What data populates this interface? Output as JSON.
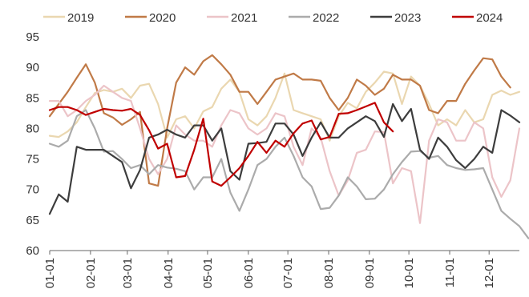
{
  "chart_data": {
    "type": "line",
    "title": "",
    "xlabel": "",
    "ylabel": "",
    "ylim": [
      60,
      95
    ],
    "yticks": [
      60,
      65,
      70,
      75,
      80,
      85,
      90,
      95
    ],
    "xlim_week": [
      1,
      52
    ],
    "x_ticks": [
      {
        "label": "01-01",
        "week": 1
      },
      {
        "label": "02-01",
        "week": 5.43
      },
      {
        "label": "03-01",
        "week": 9.43
      },
      {
        "label": "04-01",
        "week": 13.86
      },
      {
        "label": "05-01",
        "week": 18.14
      },
      {
        "label": "06-01",
        "week": 22.57
      },
      {
        "label": "07-01",
        "week": 26.86
      },
      {
        "label": "08-01",
        "week": 31.29
      },
      {
        "label": "09-01",
        "week": 35.71
      },
      {
        "label": "10-01",
        "week": 40
      },
      {
        "label": "11-01",
        "week": 44.43
      },
      {
        "label": "12-01",
        "week": 48.71
      }
    ],
    "grid": false,
    "legend_position": "top",
    "series": [
      {
        "name": "2019",
        "color": "#EAD7B0",
        "values": [
          78.8,
          78.6,
          79.5,
          81,
          83.5,
          85.8,
          86.3,
          86,
          86.5,
          85,
          87,
          87.3,
          84,
          78.5,
          81.5,
          82,
          80,
          82.8,
          83.5,
          86.5,
          88,
          86,
          81.5,
          80.5,
          82,
          85,
          89,
          83,
          82.5,
          82,
          81.5,
          78,
          82,
          84.2,
          83.3,
          86,
          87.5,
          89.3,
          89,
          84,
          88.5,
          87,
          84,
          80.5,
          81.5,
          80.5,
          83,
          81,
          81.5,
          85.5,
          86.2,
          85.5,
          86
        ]
      },
      {
        "name": "2020",
        "color": "#C07A47",
        "values": [
          82,
          84,
          86,
          88.3,
          90.5,
          87.5,
          82.5,
          81.8,
          80.6,
          81.5,
          82.7,
          71,
          70.6,
          80,
          87.5,
          90,
          88.8,
          91,
          92,
          90.5,
          88.8,
          86,
          86,
          84,
          86,
          88,
          88.5,
          89,
          88,
          88,
          87.8,
          85,
          83,
          85,
          88,
          87,
          85.5,
          86.5,
          88.8,
          88,
          88,
          87,
          83,
          82.5,
          84.5,
          84.5,
          87.3,
          89.5,
          91.5,
          91.3,
          88.5,
          86.7
        ]
      },
      {
        "name": "2021",
        "color": "#ECC4C8",
        "values": [
          84.5,
          84.5,
          82,
          83,
          84.5,
          85.5,
          87,
          86,
          85,
          84.5,
          80,
          75,
          72.5,
          75,
          80.5,
          79,
          78,
          78,
          77,
          80.5,
          83,
          82.5,
          80,
          79,
          80,
          82.5,
          82,
          77,
          74,
          80,
          78.5,
          73,
          69,
          71.5,
          76,
          76.5,
          79.5,
          79.4,
          71,
          73.5,
          73,
          64.5,
          78,
          81.5,
          81,
          78,
          78,
          81,
          80,
          72,
          68.8,
          71.5,
          80
        ]
      },
      {
        "name": "2022",
        "color": "#ABABAB",
        "values": [
          77.5,
          77,
          78,
          82,
          83,
          80,
          76.2,
          76.3,
          75,
          73.5,
          74,
          72.5,
          74,
          73.6,
          73.4,
          73,
          70,
          72,
          72,
          75,
          69.5,
          66.5,
          70,
          74,
          75,
          77,
          78.5,
          75.5,
          72,
          70.5,
          66.8,
          67,
          69,
          72,
          70.5,
          68.4,
          68.5,
          70,
          72.5,
          74.5,
          76.2,
          76.3,
          75.2,
          75.5,
          74,
          73.5,
          73.2,
          73.3,
          73.5,
          70,
          66.5,
          65.2,
          64,
          62
        ]
      },
      {
        "name": "2023",
        "color": "#3D3D3D",
        "values": [
          66,
          69.2,
          68,
          77,
          76.5,
          76.5,
          76.5,
          75.5,
          74.5,
          70.2,
          73.2,
          78.5,
          79,
          79.8,
          79,
          78.5,
          80.5,
          80.5,
          78,
          80,
          73,
          71.6,
          77.5,
          77.6,
          77.8,
          80.8,
          80.8,
          79,
          75.5,
          78.5,
          81,
          78.5,
          78.5,
          80,
          81,
          82,
          81.2,
          78.6,
          84,
          81.2,
          83.2,
          76.5,
          75,
          78.5,
          77,
          74.8,
          73.5,
          75,
          77,
          76,
          83,
          82.1,
          81
        ]
      },
      {
        "name": "2024",
        "color": "#C00000",
        "values": [
          83,
          83.5,
          83.5,
          83,
          82.2,
          82.7,
          83.2,
          83,
          82.9,
          83.2,
          82.2,
          79.7,
          76.7,
          77.5,
          72,
          72.2,
          76.5,
          81.6,
          71.3,
          70.6,
          72,
          73.5,
          75.5,
          77.8,
          76,
          78,
          77,
          79.2,
          80.8,
          81.3,
          78.2,
          78.6,
          82.4,
          82.5,
          83,
          83.6,
          84.2,
          81,
          79.5
        ]
      }
    ]
  }
}
